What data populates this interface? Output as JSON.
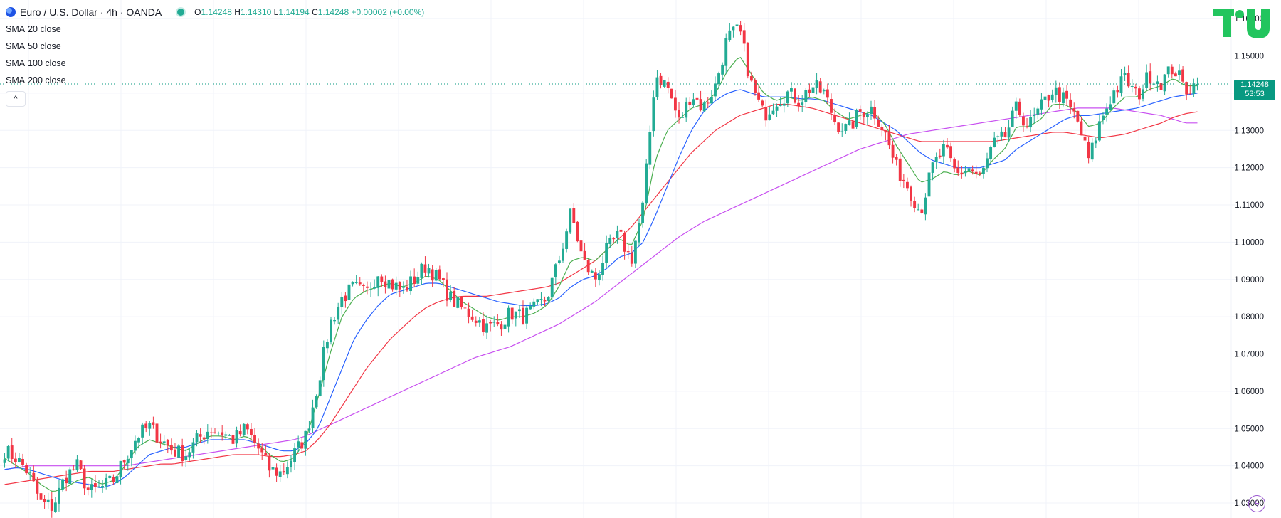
{
  "header": {
    "symbol_title": "Euro / U.S. Dollar · 4h · OANDA",
    "ohlc": {
      "o_label": "O",
      "o": "1.14248",
      "h_label": "H",
      "h": "1.14310",
      "l_label": "L",
      "l": "1.14194",
      "c_label": "C",
      "c": "1.14248",
      "change": "+0.00002 (+0.00%)"
    },
    "indicators": [
      {
        "name": "SMA",
        "params": "20 close"
      },
      {
        "name": "SMA",
        "params": "50 close"
      },
      {
        "name": "SMA",
        "params": "100 close"
      },
      {
        "name": "SMA",
        "params": "200 close"
      }
    ],
    "collapse_glyph": "^"
  },
  "price_badge": {
    "price": "1.14248",
    "countdown": "53:53"
  },
  "colors": {
    "up": "#22ab94",
    "down": "#f23645",
    "sma20": "#4caf50",
    "sma50": "#2962ff",
    "sma100": "#f23645",
    "sma200": "#c850f0",
    "grid": "#f0f3fa",
    "axis_text": "#131722",
    "badge": "#089981"
  },
  "chart_data": {
    "type": "candlestick",
    "ylim": [
      1.026,
      1.165
    ],
    "y_ticks": [
      "1.16000",
      "1.15000",
      "1.14000",
      "1.13000",
      "1.12000",
      "1.11000",
      "1.10000",
      "1.09000",
      "1.08000",
      "1.07000",
      "1.06000",
      "1.05000",
      "1.04000",
      "1.03000"
    ],
    "last_price": 1.14248,
    "close_path": [
      1.044,
      1.042,
      1.038,
      1.03,
      1.029,
      1.037,
      1.04,
      1.033,
      1.034,
      1.036,
      1.042,
      1.048,
      1.0505,
      1.047,
      1.044,
      1.043,
      1.047,
      1.05,
      1.049,
      1.047,
      1.05,
      1.045,
      1.039,
      1.038,
      1.043,
      1.048,
      1.062,
      1.078,
      1.085,
      1.088,
      1.086,
      1.092,
      1.089,
      1.087,
      1.09,
      1.094,
      1.09,
      1.085,
      1.082,
      1.08,
      1.077,
      1.078,
      1.081,
      1.08,
      1.082,
      1.085,
      1.095,
      1.108,
      1.095,
      1.09,
      1.098,
      1.102,
      1.095,
      1.11,
      1.145,
      1.142,
      1.132,
      1.14,
      1.136,
      1.142,
      1.155,
      1.157,
      1.142,
      1.134,
      1.138,
      1.14,
      1.138,
      1.142,
      1.14,
      1.132,
      1.13,
      1.135,
      1.136,
      1.13,
      1.12,
      1.115,
      1.108,
      1.12,
      1.125,
      1.118,
      1.12,
      1.117,
      1.126,
      1.128,
      1.136,
      1.131,
      1.136,
      1.141,
      1.138,
      1.133,
      1.122,
      1.133,
      1.14,
      1.144,
      1.139,
      1.145,
      1.143,
      1.147,
      1.141,
      1.1425
    ],
    "sma20_path": [
      1.042,
      1.04,
      1.038,
      1.035,
      1.033,
      1.034,
      1.036,
      1.037,
      1.035,
      1.036,
      1.04,
      1.045,
      1.047,
      1.046,
      1.045,
      1.044,
      1.046,
      1.048,
      1.048,
      1.047,
      1.048,
      1.046,
      1.043,
      1.041,
      1.042,
      1.047,
      1.058,
      1.07,
      1.08,
      1.085,
      1.087,
      1.088,
      1.089,
      1.088,
      1.089,
      1.091,
      1.09,
      1.087,
      1.084,
      1.082,
      1.08,
      1.079,
      1.08,
      1.08,
      1.081,
      1.083,
      1.088,
      1.095,
      1.096,
      1.095,
      1.098,
      1.101,
      1.099,
      1.106,
      1.122,
      1.13,
      1.133,
      1.136,
      1.137,
      1.14,
      1.146,
      1.15,
      1.145,
      1.14,
      1.138,
      1.139,
      1.138,
      1.139,
      1.138,
      1.135,
      1.133,
      1.134,
      1.135,
      1.132,
      1.126,
      1.121,
      1.116,
      1.117,
      1.119,
      1.118,
      1.119,
      1.118,
      1.122,
      1.125,
      1.131,
      1.131,
      1.133,
      1.137,
      1.137,
      1.135,
      1.131,
      1.132,
      1.136,
      1.139,
      1.139,
      1.141,
      1.142,
      1.144,
      1.142,
      1.142
    ],
    "sma50_path": [
      1.039,
      1.0395,
      1.039,
      1.038,
      1.037,
      1.036,
      1.0355,
      1.035,
      1.034,
      1.035,
      1.037,
      1.04,
      1.043,
      1.044,
      1.045,
      1.045,
      1.046,
      1.047,
      1.047,
      1.047,
      1.047,
      1.046,
      1.045,
      1.044,
      1.044,
      1.046,
      1.05,
      1.058,
      1.066,
      1.074,
      1.079,
      1.083,
      1.086,
      1.087,
      1.088,
      1.089,
      1.089,
      1.088,
      1.087,
      1.086,
      1.085,
      1.084,
      1.0835,
      1.083,
      1.083,
      1.0835,
      1.085,
      1.088,
      1.09,
      1.091,
      1.093,
      1.096,
      1.097,
      1.1,
      1.107,
      1.115,
      1.123,
      1.13,
      1.135,
      1.138,
      1.14,
      1.141,
      1.14,
      1.139,
      1.139,
      1.139,
      1.1385,
      1.1385,
      1.138,
      1.137,
      1.136,
      1.135,
      1.134,
      1.132,
      1.13,
      1.127,
      1.124,
      1.122,
      1.121,
      1.12,
      1.12,
      1.12,
      1.121,
      1.122,
      1.125,
      1.127,
      1.129,
      1.131,
      1.133,
      1.134,
      1.134,
      1.1345,
      1.135,
      1.1355,
      1.136,
      1.137,
      1.138,
      1.139,
      1.1395,
      1.14
    ],
    "sma100_path": [
      1.035,
      1.0355,
      1.036,
      1.0365,
      1.037,
      1.0375,
      1.038,
      1.0385,
      1.0385,
      1.0385,
      1.039,
      1.0395,
      1.04,
      1.0405,
      1.0405,
      1.041,
      1.0415,
      1.042,
      1.0425,
      1.043,
      1.043,
      1.043,
      1.0425,
      1.0425,
      1.043,
      1.044,
      1.047,
      1.051,
      1.056,
      1.061,
      1.066,
      1.07,
      1.074,
      1.077,
      1.08,
      1.0825,
      1.084,
      1.085,
      1.0855,
      1.0855,
      1.0855,
      1.086,
      1.0865,
      1.087,
      1.0875,
      1.088,
      1.089,
      1.091,
      1.093,
      1.095,
      1.098,
      1.101,
      1.104,
      1.108,
      1.112,
      1.116,
      1.12,
      1.124,
      1.127,
      1.13,
      1.132,
      1.134,
      1.135,
      1.136,
      1.137,
      1.137,
      1.1365,
      1.136,
      1.135,
      1.134,
      1.133,
      1.132,
      1.131,
      1.13,
      1.129,
      1.128,
      1.127,
      1.127,
      1.127,
      1.127,
      1.127,
      1.127,
      1.127,
      1.1275,
      1.128,
      1.1285,
      1.129,
      1.1295,
      1.1295,
      1.129,
      1.1285,
      1.128,
      1.1285,
      1.129,
      1.13,
      1.131,
      1.132,
      1.1335,
      1.1345,
      1.135
    ],
    "sma200_path": [
      1.039,
      1.0395,
      1.04,
      1.04,
      1.04,
      1.04,
      1.04,
      1.04,
      1.04,
      1.04,
      1.04,
      1.0405,
      1.041,
      1.0415,
      1.042,
      1.0425,
      1.043,
      1.0435,
      1.044,
      1.0445,
      1.045,
      1.0455,
      1.046,
      1.0465,
      1.047,
      1.048,
      1.0495,
      1.051,
      1.0525,
      1.054,
      1.0555,
      1.057,
      1.0585,
      1.06,
      1.0615,
      1.063,
      1.0645,
      1.066,
      1.0675,
      1.069,
      1.07,
      1.071,
      1.072,
      1.0735,
      1.075,
      1.0765,
      1.078,
      1.08,
      1.082,
      1.084,
      1.0865,
      1.089,
      1.0915,
      1.094,
      1.0965,
      1.099,
      1.1015,
      1.1035,
      1.1055,
      1.107,
      1.1085,
      1.11,
      1.1115,
      1.113,
      1.1145,
      1.116,
      1.1175,
      1.119,
      1.1205,
      1.122,
      1.1235,
      1.125,
      1.126,
      1.127,
      1.128,
      1.129,
      1.1295,
      1.13,
      1.1305,
      1.131,
      1.1315,
      1.132,
      1.1325,
      1.133,
      1.1335,
      1.134,
      1.1345,
      1.135,
      1.1355,
      1.136,
      1.136,
      1.136,
      1.136,
      1.1355,
      1.135,
      1.1345,
      1.134,
      1.133,
      1.132,
      1.132
    ]
  }
}
